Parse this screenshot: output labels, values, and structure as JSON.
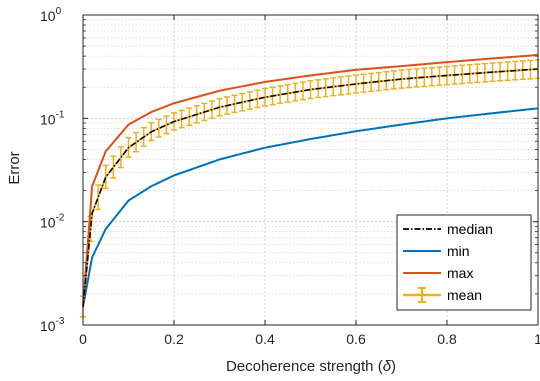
{
  "chart_data": {
    "type": "line",
    "title": "",
    "xlabel": "Decoherence strength (",
    "xlabel_symbol": "δ",
    "xlabel_close": ")",
    "ylabel": "Error",
    "xlim": [
      0,
      1
    ],
    "ylim": [
      0.001,
      1
    ],
    "yscale": "log",
    "grid": "major and minor",
    "legend_position": "bottom-right",
    "x_ticks": [
      0,
      0.2,
      0.4,
      0.6,
      0.8,
      1
    ],
    "x_tick_labels": [
      "0",
      "0.2",
      "0.4",
      "0.6",
      "0.8",
      "1"
    ],
    "y_tick_labels": [
      {
        "base": "10",
        "exp": "-3",
        "value": 0.001
      },
      {
        "base": "10",
        "exp": "-2",
        "value": 0.01
      },
      {
        "base": "10",
        "exp": "-1",
        "value": 0.1
      },
      {
        "base": "10",
        "exp": "0",
        "value": 1
      }
    ],
    "x": [
      0,
      0.02,
      0.05,
      0.1,
      0.15,
      0.2,
      0.3,
      0.4,
      0.5,
      0.6,
      0.7,
      0.8,
      0.9,
      1.0
    ],
    "series": [
      {
        "name": "median",
        "style": "dash-dot",
        "color": "#000000",
        "values": [
          0.0015,
          0.012,
          0.027,
          0.052,
          0.074,
          0.093,
          0.128,
          0.16,
          0.19,
          0.215,
          0.24,
          0.26,
          0.28,
          0.3
        ]
      },
      {
        "name": "min",
        "style": "solid",
        "color": "#0072BD",
        "values": [
          0.0015,
          0.0045,
          0.0085,
          0.016,
          0.022,
          0.028,
          0.04,
          0.052,
          0.063,
          0.075,
          0.087,
          0.1,
          0.112,
          0.125
        ]
      },
      {
        "name": "max",
        "style": "solid",
        "color": "#D95319",
        "values": [
          0.0015,
          0.022,
          0.048,
          0.087,
          0.115,
          0.14,
          0.185,
          0.225,
          0.26,
          0.295,
          0.32,
          0.35,
          0.38,
          0.41
        ]
      },
      {
        "name": "mean",
        "style": "errorbar",
        "color": "#EDB120",
        "values": [
          0.0015,
          0.012,
          0.027,
          0.052,
          0.074,
          0.093,
          0.128,
          0.16,
          0.19,
          0.215,
          0.24,
          0.26,
          0.28,
          0.3
        ],
        "error_low": [
          0.0003,
          0.003,
          0.006,
          0.01,
          0.013,
          0.016,
          0.022,
          0.028,
          0.034,
          0.039,
          0.044,
          0.048,
          0.052,
          0.056
        ],
        "error_high": [
          0.0004,
          0.004,
          0.008,
          0.013,
          0.017,
          0.02,
          0.027,
          0.034,
          0.041,
          0.047,
          0.053,
          0.058,
          0.063,
          0.068
        ]
      }
    ]
  }
}
